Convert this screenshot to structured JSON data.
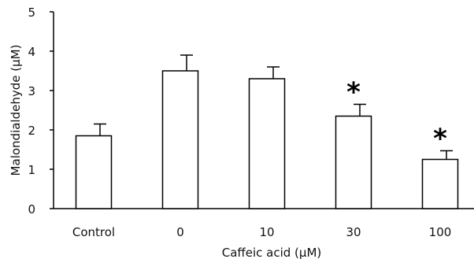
{
  "chart_data": {
    "type": "bar",
    "categories": [
      "Control",
      "0",
      "10",
      "30",
      "100"
    ],
    "values": [
      1.85,
      3.5,
      3.3,
      2.35,
      1.25
    ],
    "errors": [
      0.3,
      0.4,
      0.3,
      0.3,
      0.22
    ],
    "annotations": [
      "",
      "",
      "",
      "*",
      "*"
    ],
    "xlabel": "Caffeic acid (μM)",
    "ylabel": "Malondialdehyde (μM)",
    "ylim": [
      0,
      5
    ],
    "yticks": [
      "0",
      "1",
      "2",
      "3",
      "4",
      "5"
    ],
    "grid": false,
    "bar_fill": "#ffffff",
    "bar_stroke": "#000000"
  }
}
